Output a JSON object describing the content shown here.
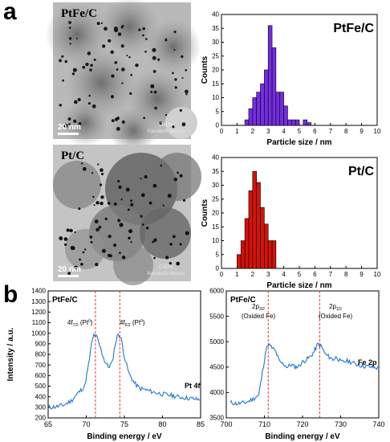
{
  "panel_labels": {
    "a": "a",
    "b": "b"
  },
  "tem": [
    {
      "label": "PtFe/C",
      "scale": "20 nm",
      "watermark_line1": "CIMAV",
      "watermark_line2": "Nanotech Mexico"
    },
    {
      "label": "Pt/C",
      "scale": "20 nm",
      "watermark_line1": "CIMAV",
      "watermark_line2": "Nanotech Mexico"
    }
  ],
  "chart_data": [
    {
      "type": "bar",
      "title": "PtFe/C",
      "xlabel": "Particle size / nm",
      "ylabel": "Counts",
      "xlim": [
        0,
        10
      ],
      "ylim": [
        0,
        40
      ],
      "xticks": [
        0,
        1,
        2,
        3,
        4,
        5,
        6,
        7,
        8,
        9,
        10
      ],
      "yticks": [
        0,
        5,
        10,
        15,
        20,
        25,
        30,
        35,
        40
      ],
      "bin_width": 0.25,
      "bins": [
        1.5,
        1.75,
        2.0,
        2.25,
        2.5,
        2.75,
        3.0,
        3.25,
        3.5,
        3.75,
        4.0,
        4.25,
        4.5,
        4.75,
        5.0,
        5.25,
        5.5
      ],
      "values": [
        2,
        6,
        10,
        12,
        15,
        20,
        36,
        28,
        12,
        12,
        7,
        2,
        2,
        2,
        0,
        2,
        1
      ],
      "color": "#7b2ff0"
    },
    {
      "type": "bar",
      "title": "Pt/C",
      "xlabel": "Particle size / nm",
      "ylabel": "Counts",
      "xlim": [
        0,
        10
      ],
      "ylim": [
        0,
        40
      ],
      "xticks": [
        0,
        1,
        2,
        3,
        4,
        5,
        6,
        7,
        8,
        9,
        10
      ],
      "yticks": [
        0,
        5,
        10,
        15,
        20,
        25,
        30,
        35,
        40
      ],
      "bin_width": 0.25,
      "bins": [
        1.0,
        1.25,
        1.5,
        1.75,
        2.0,
        2.25,
        2.5,
        2.75,
        3.0,
        3.25
      ],
      "values": [
        5,
        10,
        18,
        28,
        35,
        31,
        22,
        16,
        10,
        10
      ],
      "color": "#e0140a"
    },
    {
      "type": "line",
      "title": "PtFe/C",
      "xlabel": "Binding energy / eV",
      "ylabel": "Intensity / a.u.",
      "xlim": [
        65,
        85
      ],
      "ylim": [
        200,
        1400
      ],
      "xticks": [
        65,
        70,
        75,
        80,
        85
      ],
      "yticks": [
        200,
        300,
        400,
        500,
        600,
        700,
        800,
        900,
        1000,
        1100,
        1200,
        1300,
        1400
      ],
      "series_label": "Pt 4f",
      "color": "#1f77d4",
      "vlines": [
        71.2,
        74.4
      ],
      "annotations": [
        "4f",
        "7/2",
        " (Pt",
        "0",
        ")",
        "4f",
        "5/2",
        " (Pt",
        "0",
        ")"
      ],
      "points": [
        [
          65,
          300
        ],
        [
          66,
          305
        ],
        [
          67,
          320
        ],
        [
          68,
          360
        ],
        [
          69,
          440
        ],
        [
          69.8,
          500
        ],
        [
          70.3,
          700
        ],
        [
          70.7,
          900
        ],
        [
          71.0,
          985
        ],
        [
          71.4,
          960
        ],
        [
          71.9,
          850
        ],
        [
          72.4,
          740
        ],
        [
          72.9,
          680
        ],
        [
          73.4,
          720
        ],
        [
          73.8,
          900
        ],
        [
          74.2,
          1000
        ],
        [
          74.6,
          940
        ],
        [
          75.0,
          780
        ],
        [
          75.6,
          620
        ],
        [
          76.3,
          530
        ],
        [
          77,
          480
        ],
        [
          78,
          460
        ],
        [
          79,
          440
        ],
        [
          80,
          425
        ],
        [
          81,
          415
        ],
        [
          82,
          400
        ],
        [
          83,
          390
        ],
        [
          84,
          380
        ],
        [
          85,
          370
        ]
      ]
    },
    {
      "type": "line",
      "title": "PtFe/C",
      "xlabel": "Binding energy / eV",
      "ylabel": "",
      "xlim": [
        700,
        740
      ],
      "ylim": [
        3500,
        6000
      ],
      "xticks": [
        700,
        710,
        720,
        730,
        740
      ],
      "yticks": [
        3500,
        4000,
        4500,
        5000,
        5500,
        6000
      ],
      "series_label": "Fe 2p",
      "color": "#1f77d4",
      "vlines": [
        711.0,
        724.5
      ],
      "annotations": [
        "2p",
        "3/2",
        "(Oxided Fe)",
        "2p",
        "1/2",
        "(Oxided Fe)"
      ],
      "points": [
        [
          701,
          3800
        ],
        [
          703,
          3780
        ],
        [
          705,
          3800
        ],
        [
          707,
          3870
        ],
        [
          708.5,
          3950
        ],
        [
          709.5,
          4400
        ],
        [
          710.3,
          4800
        ],
        [
          711,
          4950
        ],
        [
          712,
          4880
        ],
        [
          713,
          4800
        ],
        [
          714,
          4600
        ],
        [
          715,
          4560
        ],
        [
          716,
          4500
        ],
        [
          717,
          4550
        ],
        [
          718,
          4500
        ],
        [
          719,
          4520
        ],
        [
          720,
          4600
        ],
        [
          721,
          4650
        ],
        [
          722,
          4700
        ],
        [
          723,
          4800
        ],
        [
          724,
          4950
        ],
        [
          725,
          4900
        ],
        [
          726,
          4750
        ],
        [
          727,
          4700
        ],
        [
          728,
          4650
        ],
        [
          729,
          4700
        ],
        [
          730,
          4600
        ],
        [
          732,
          4620
        ],
        [
          734,
          4560
        ],
        [
          736,
          4520
        ],
        [
          738,
          4500
        ],
        [
          740,
          4480
        ]
      ]
    }
  ]
}
